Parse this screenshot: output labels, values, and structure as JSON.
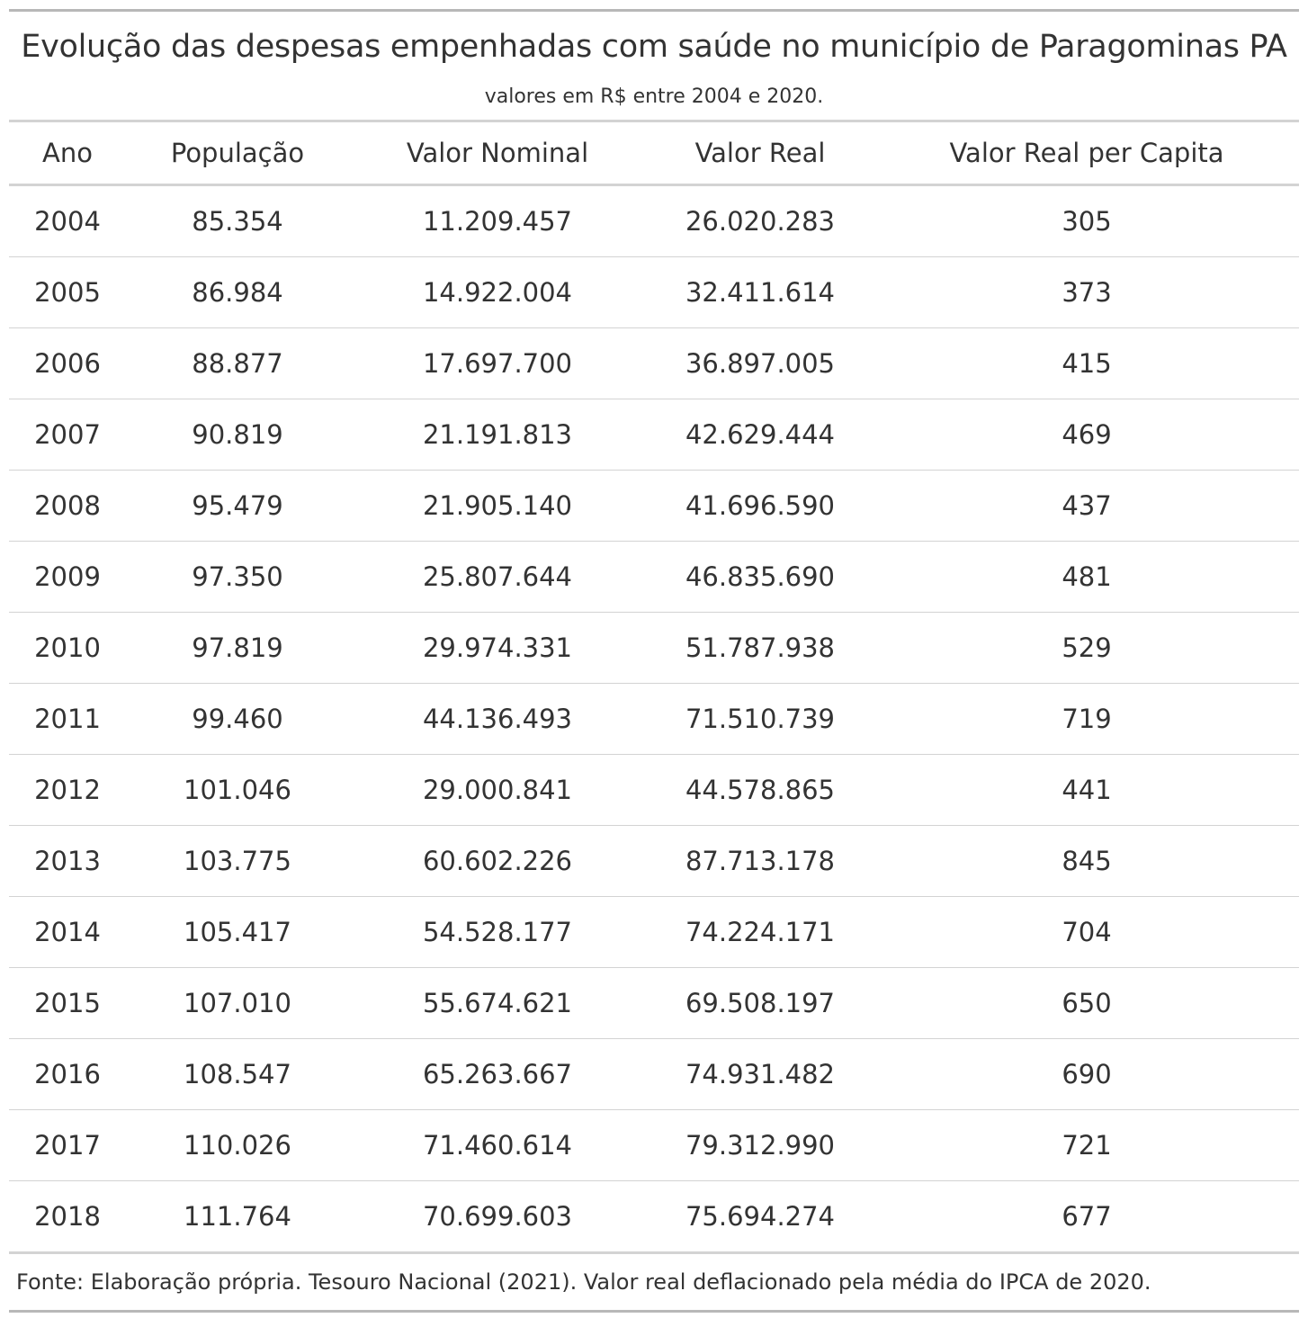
{
  "title": "Evolução das despesas empenhadas com saúde no município de Paragominas PA",
  "subtitle": "valores em R$ entre 2004 e 2020.",
  "columns": [
    "Ano",
    "População",
    "Valor Nominal",
    "Valor Real",
    "Valor Real per Capita"
  ],
  "rows": [
    [
      "2004",
      "85.354",
      "11.209.457",
      "26.020.283",
      "305"
    ],
    [
      "2005",
      "86.984",
      "14.922.004",
      "32.411.614",
      "373"
    ],
    [
      "2006",
      "88.877",
      "17.697.700",
      "36.897.005",
      "415"
    ],
    [
      "2007",
      "90.819",
      "21.191.813",
      "42.629.444",
      "469"
    ],
    [
      "2008",
      "95.479",
      "21.905.140",
      "41.696.590",
      "437"
    ],
    [
      "2009",
      "97.350",
      "25.807.644",
      "46.835.690",
      "481"
    ],
    [
      "2010",
      "97.819",
      "29.974.331",
      "51.787.938",
      "529"
    ],
    [
      "2011",
      "99.460",
      "44.136.493",
      "71.510.739",
      "719"
    ],
    [
      "2012",
      "101.046",
      "29.000.841",
      "44.578.865",
      "441"
    ],
    [
      "2013",
      "103.775",
      "60.602.226",
      "87.713.178",
      "845"
    ],
    [
      "2014",
      "105.417",
      "54.528.177",
      "74.224.171",
      "704"
    ],
    [
      "2015",
      "107.010",
      "55.674.621",
      "69.508.197",
      "650"
    ],
    [
      "2016",
      "108.547",
      "65.263.667",
      "74.931.482",
      "690"
    ],
    [
      "2017",
      "110.026",
      "71.460.614",
      "79.312.990",
      "721"
    ],
    [
      "2018",
      "111.764",
      "70.699.603",
      "75.694.274",
      "677"
    ]
  ],
  "source_note": "Fonte: Elaboração própria. Tesouro Nacional (2021). Valor real deflacionado pela média do IPCA de 2020."
}
